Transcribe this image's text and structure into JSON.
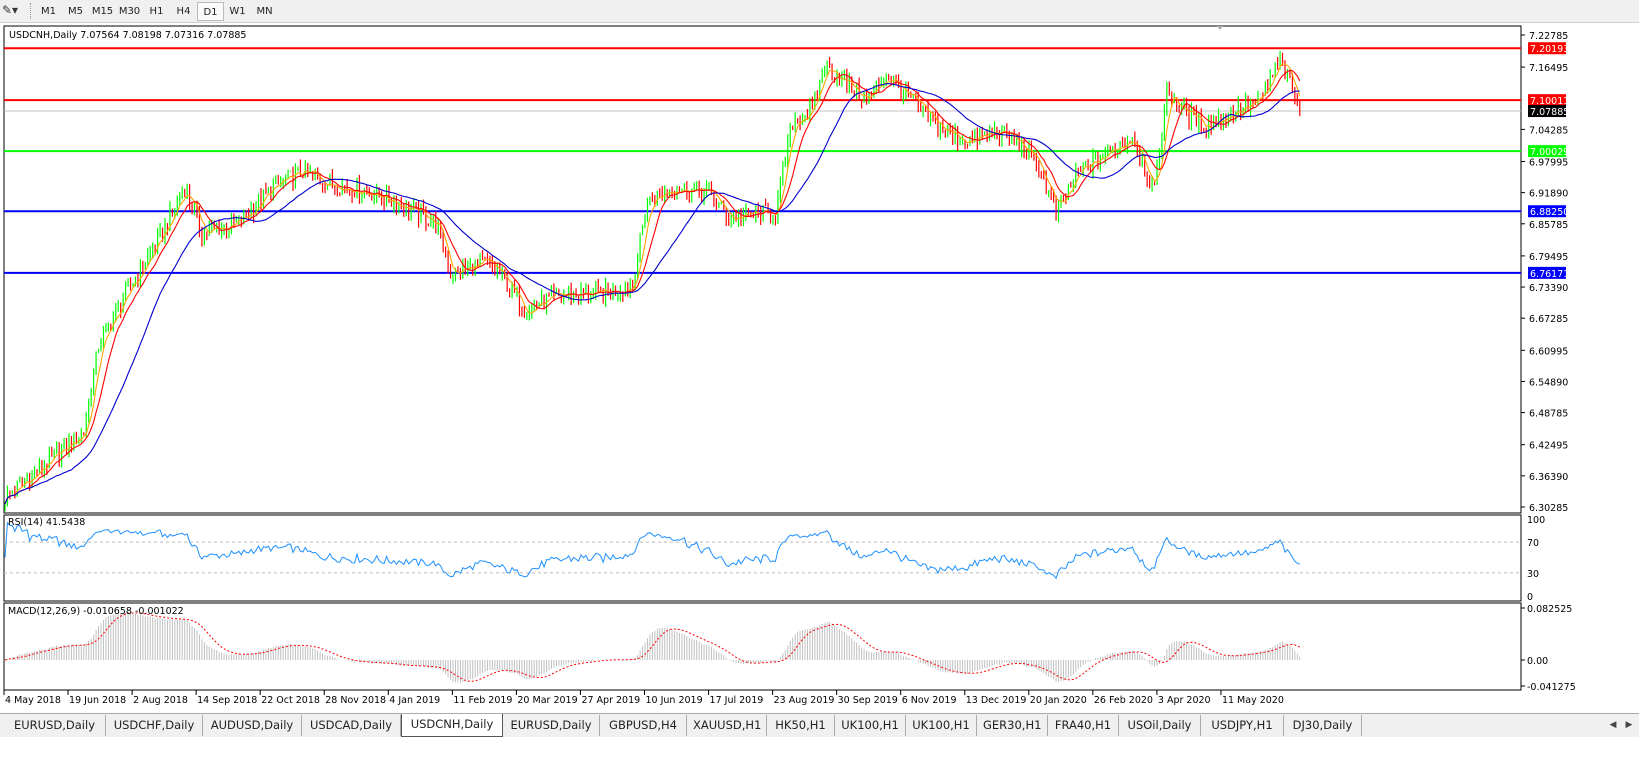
{
  "toolbar": {
    "icon": "line-tool-icon",
    "timeframes": [
      "M1",
      "M5",
      "M15",
      "M30",
      "H1",
      "H4",
      "D1",
      "W1",
      "MN"
    ],
    "active": "D1"
  },
  "chart": {
    "legend": "USDCNH,Daily  7.07564 7.08198 7.07316 7.07885",
    "symbol": "USDCNH",
    "timeframe": "Daily",
    "ohlc": {
      "open": 7.07564,
      "high": 7.08198,
      "low": 7.07316,
      "close": 7.07885
    },
    "price_ticks": [
      "7.22785",
      "7.16495",
      "7.04285",
      "6.97995",
      "6.91890",
      "6.85785",
      "6.79495",
      "6.73390",
      "6.67285",
      "6.60995",
      "6.54890",
      "6.48785",
      "6.42495",
      "6.36390",
      "6.30285"
    ],
    "levels": [
      {
        "label": "7.20193",
        "value": 7.20193,
        "color": "#ff0000"
      },
      {
        "label": "7.10011",
        "value": 7.10011,
        "color": "#ff0000"
      },
      {
        "label": "7.07885",
        "value": 7.07885,
        "color": "#c0c0c0",
        "tag_color": "#000000"
      },
      {
        "label": "7.00029",
        "value": 7.00029,
        "color": "#00ff00"
      },
      {
        "label": "6.88250",
        "value": 6.8825,
        "color": "#0000ff"
      },
      {
        "label": "6.76171",
        "value": 6.76171,
        "color": "#0000ff"
      }
    ],
    "colors": {
      "up": "#00ff00",
      "down": "#ff0000",
      "ma_fast": "#ffa500",
      "ma_mid": "#ff0000",
      "ma_slow": "#0000cd",
      "rsi": "#1e90ff",
      "macd_hist": "#c0c0c0",
      "macd_signal": "#ff0000"
    }
  },
  "rsi": {
    "label": "RSI(14) 41.5438",
    "ticks": [
      "100",
      "70",
      "30",
      "0"
    ]
  },
  "macd": {
    "label": "MACD(12,26,9) -0.010658 -0.001022",
    "ticks": [
      "0.082525",
      "0.00",
      "-0.041275"
    ]
  },
  "date_ticks": [
    "4 May 2018",
    "19 Jun 2018",
    "2 Aug 2018",
    "14 Sep 2018",
    "22 Oct 2018",
    "28 Nov 2018",
    "4 Jan 2019",
    "11 Feb 2019",
    "20 Mar 2019",
    "27 Apr 2019",
    "10 Jun 2019",
    "17 Jul 2019",
    "23 Aug 2019",
    "30 Sep 2019",
    "6 Nov 2019",
    "13 Dec 2019",
    "20 Jan 2020",
    "26 Feb 2020",
    "3 Apr 2020",
    "11 May 2020"
  ],
  "tabs": [
    "EURUSD,Daily",
    "USDCHF,Daily",
    "AUDUSD,Daily",
    "USDCAD,Daily",
    "USDCNH,Daily",
    "EURUSD,Daily",
    "GBPUSD,H4",
    "XAUUSD,H1",
    "HK50,H1",
    "UK100,H1",
    "UK100,H1",
    "GER30,H1",
    "FRA40,H1",
    "USOil,Daily",
    "USDJPY,H1",
    "DJ30,Daily"
  ],
  "active_tab": "USDCNH,Daily",
  "chart_data": {
    "type": "bar",
    "symbol": "USDCNH",
    "timeframe": "Daily",
    "ylim": [
      6.30285,
      7.22785
    ],
    "approx_close_path": [
      [
        "2018-05-04",
        6.32
      ],
      [
        "2018-05-25",
        6.38
      ],
      [
        "2018-06-19",
        6.45
      ],
      [
        "2018-06-27",
        6.62
      ],
      [
        "2018-07-12",
        6.72
      ],
      [
        "2018-08-02",
        6.84
      ],
      [
        "2018-08-15",
        6.93
      ],
      [
        "2018-08-24",
        6.84
      ],
      [
        "2018-09-14",
        6.86
      ],
      [
        "2018-10-04",
        6.93
      ],
      [
        "2018-10-22",
        6.96
      ],
      [
        "2018-11-01",
        6.94
      ],
      [
        "2018-11-28",
        6.92
      ],
      [
        "2018-12-13",
        6.9
      ],
      [
        "2019-01-04",
        6.86
      ],
      [
        "2019-01-14",
        6.76
      ],
      [
        "2019-02-01",
        6.78
      ],
      [
        "2019-02-11",
        6.76
      ],
      [
        "2019-02-25",
        6.69
      ],
      [
        "2019-03-20",
        6.72
      ],
      [
        "2019-04-10",
        6.72
      ],
      [
        "2019-04-26",
        6.74
      ],
      [
        "2019-05-06",
        6.9
      ],
      [
        "2019-05-20",
        6.93
      ],
      [
        "2019-06-10",
        6.92
      ],
      [
        "2019-06-20",
        6.87
      ],
      [
        "2019-07-17",
        6.88
      ],
      [
        "2019-07-26",
        7.06
      ],
      [
        "2019-08-07",
        7.08
      ],
      [
        "2019-08-14",
        7.17
      ],
      [
        "2019-08-23",
        7.14
      ],
      [
        "2019-09-06",
        7.1
      ],
      [
        "2019-09-18",
        7.15
      ],
      [
        "2019-09-30",
        7.11
      ],
      [
        "2019-10-14",
        7.06
      ],
      [
        "2019-10-25",
        7.03
      ],
      [
        "2019-11-06",
        7.02
      ],
      [
        "2019-11-20",
        7.04
      ],
      [
        "2019-12-02",
        7.02
      ],
      [
        "2019-12-13",
        6.97
      ],
      [
        "2019-12-24",
        6.88
      ],
      [
        "2020-01-06",
        6.96
      ],
      [
        "2020-01-20",
        6.99
      ],
      [
        "2020-02-05",
        7.03
      ],
      [
        "2020-02-18",
        6.92
      ],
      [
        "2020-02-25",
        7.12
      ],
      [
        "2020-03-04",
        7.08
      ],
      [
        "2020-03-18",
        7.05
      ],
      [
        "2020-04-03",
        7.08
      ],
      [
        "2020-04-17",
        7.1
      ],
      [
        "2020-04-29",
        7.18
      ],
      [
        "2020-05-06",
        7.12
      ],
      [
        "2020-05-11",
        7.07885
      ]
    ]
  }
}
